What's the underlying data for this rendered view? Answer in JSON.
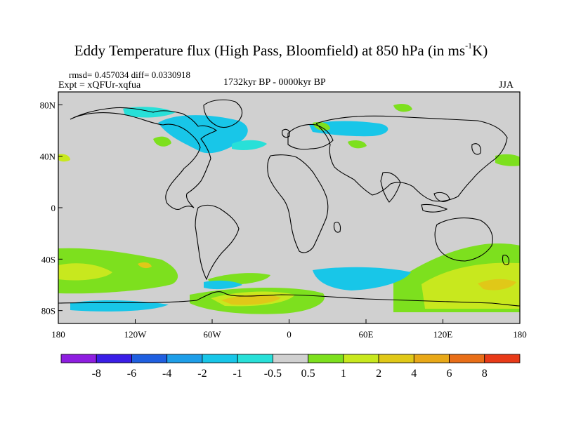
{
  "title_main": "Eddy Temperature flux (High Pass, Bloomfield) at 850 hPa (in ms",
  "title_sup": "-1",
  "title_tail": "K)",
  "stats": "rmsd= 0.457034  diff= 0.0330918",
  "experiment": "Expt = xQFUr-xqfua",
  "period": "1732kyr BP - 0000kyr BP",
  "season": "JJA",
  "lat_labels": [
    {
      "text": "80N",
      "lat": 80
    },
    {
      "text": "40N",
      "lat": 40
    },
    {
      "text": "0",
      "lat": 0
    },
    {
      "text": "40S",
      "lat": -40
    },
    {
      "text": "80S",
      "lat": -80
    }
  ],
  "lon_labels": [
    {
      "text": "180",
      "lon": -180
    },
    {
      "text": "120W",
      "lon": -120
    },
    {
      "text": "60W",
      "lon": -60
    },
    {
      "text": "0",
      "lon": 0
    },
    {
      "text": "60E",
      "lon": 60
    },
    {
      "text": "120E",
      "lon": 120
    },
    {
      "text": "180",
      "lon": 180
    }
  ],
  "colorbar": {
    "colors": [
      "#8e1ee0",
      "#3a1ee6",
      "#1f5fe0",
      "#1e9ee8",
      "#18c6e8",
      "#28e0d8",
      "#d0d0d0",
      "#7de01e",
      "#c8e81e",
      "#e0c818",
      "#e8a818",
      "#e86e18",
      "#e83a18"
    ],
    "labels": [
      "-8",
      "-6",
      "-4",
      "-2",
      "-1",
      "-0.5",
      "0.5",
      "1",
      "2",
      "4",
      "6",
      "8"
    ]
  },
  "map": {
    "background_color": "#d0d0d0",
    "lat_range": [
      -90,
      90
    ],
    "lon_range": [
      -180,
      180
    ]
  }
}
